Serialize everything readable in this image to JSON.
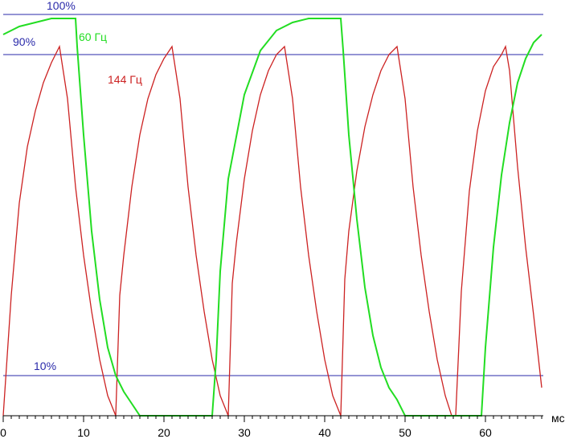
{
  "chart_data": {
    "type": "line",
    "xlabel": "мс",
    "xlim": [
      0,
      67
    ],
    "ylim": [
      0,
      100
    ],
    "x_ticks": [
      0,
      10,
      20,
      30,
      40,
      50,
      60
    ],
    "x_tick_labels": [
      "0",
      "10",
      "20",
      "30",
      "40",
      "50",
      "60"
    ],
    "reference_lines": [
      {
        "label": "100%",
        "y": 100
      },
      {
        "label": "90%",
        "y": 90
      },
      {
        "label": "10%",
        "y": 10
      }
    ],
    "series": [
      {
        "name": "144 Гц",
        "color": "#cc2222",
        "x": [
          0,
          0.5,
          1,
          2,
          3,
          4,
          5,
          6,
          7,
          8,
          9,
          10,
          11,
          12,
          13,
          14,
          14.5,
          15,
          16,
          17,
          18,
          19,
          20,
          21,
          22,
          23,
          24,
          25,
          26,
          27,
          28,
          28.5,
          29,
          30,
          31,
          32,
          33,
          34,
          35,
          36,
          37,
          38,
          39,
          40,
          41,
          42,
          42.5,
          43,
          44,
          45,
          46,
          47,
          48,
          49,
          50,
          51,
          52,
          53,
          54,
          55,
          55.8,
          56.3,
          57,
          58,
          59,
          60,
          61,
          62,
          62.5,
          63,
          64,
          65,
          66,
          67
        ],
        "y": [
          0,
          15,
          30,
          53,
          67,
          76,
          83,
          88,
          92,
          79,
          57,
          40,
          26,
          14,
          5,
          0,
          30,
          40,
          57,
          70,
          79,
          85,
          89,
          92,
          79,
          57,
          40,
          26,
          14,
          5,
          0,
          33,
          43,
          59,
          71,
          80,
          86,
          90,
          92,
          79,
          57,
          40,
          26,
          14,
          5,
          0,
          34,
          46,
          61,
          72,
          80,
          86,
          90,
          92,
          79,
          57,
          40,
          26,
          14,
          5,
          0,
          0,
          31,
          56,
          71,
          81,
          87,
          90,
          92,
          86,
          62,
          42,
          25,
          7
        ]
      },
      {
        "name": "60 Гц",
        "color": "#22dd22",
        "x": [
          0,
          1,
          2,
          4,
          6,
          8,
          9,
          9.2,
          10,
          11,
          12,
          13,
          14,
          15,
          16,
          17,
          20,
          24,
          26,
          26.5,
          27,
          28,
          30,
          32,
          34,
          36,
          38,
          40,
          42,
          42.3,
          43,
          44,
          45,
          46,
          47,
          48,
          49,
          50,
          53,
          56,
          59.5,
          60,
          61,
          62,
          63,
          64,
          65,
          66,
          67
        ],
        "y": [
          95,
          96,
          97,
          98,
          99,
          99,
          99,
          92,
          70,
          46,
          29,
          17,
          10,
          6,
          3,
          0,
          0,
          0,
          0,
          14,
          36,
          59,
          80,
          91,
          96,
          98,
          99,
          99,
          99,
          91,
          70,
          49,
          32,
          20,
          12,
          7,
          4,
          0,
          0,
          0,
          0,
          17,
          42,
          60,
          73,
          83,
          89,
          93,
          95
        ]
      }
    ]
  }
}
